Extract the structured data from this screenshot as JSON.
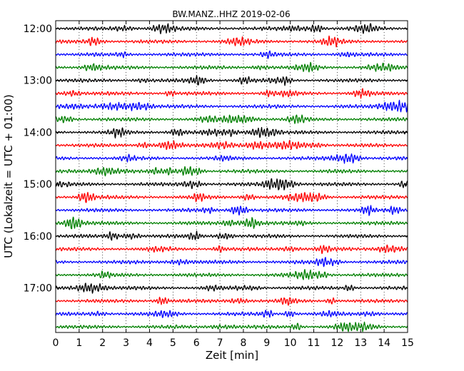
{
  "chart_data": {
    "type": "line",
    "subtype": "helicorder",
    "title": "BW.MANZ..HHZ 2019-02-06",
    "xlabel": "Zeit  [min]",
    "ylabel": "UTC (Lokalzeit = UTC + 01:00)",
    "xlim": [
      0,
      15
    ],
    "x_ticks": [
      "0",
      "1",
      "2",
      "3",
      "4",
      "5",
      "6",
      "7",
      "8",
      "9",
      "10",
      "11",
      "12",
      "13",
      "14",
      "15"
    ],
    "y_tick_labels": [
      "12:00",
      "13:00",
      "14:00",
      "15:00",
      "16:00",
      "17:00"
    ],
    "trace_start_times": [
      "12:00",
      "12:15",
      "12:30",
      "12:45",
      "13:00",
      "13:15",
      "13:30",
      "13:45",
      "14:00",
      "14:15",
      "14:30",
      "14:45",
      "15:00",
      "15:15",
      "15:30",
      "15:45",
      "16:00",
      "16:15",
      "16:30",
      "16:45",
      "17:00",
      "17:15",
      "17:30",
      "17:45"
    ],
    "trace_duration_min": 15,
    "color_cycle": [
      "#000000",
      "#ff0000",
      "#0000ff",
      "#008000"
    ],
    "grid": {
      "x": true,
      "y": false,
      "style": "dotted"
    },
    "waveform": "seismic noise (continuous low-amplitude oscillation)"
  }
}
